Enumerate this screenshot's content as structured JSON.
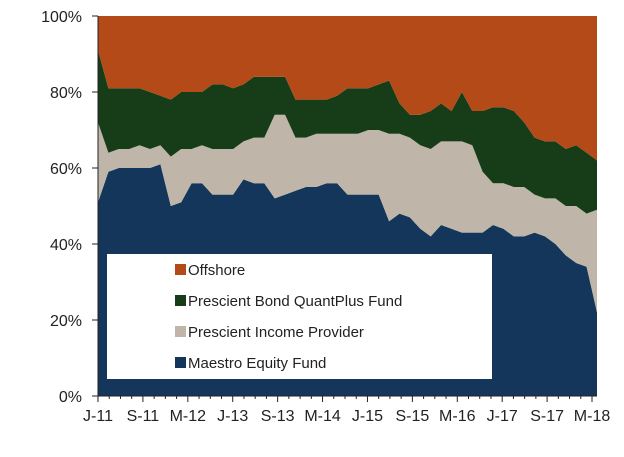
{
  "chart_data": {
    "type": "area",
    "stacked": true,
    "percent": true,
    "title": "",
    "xlabel": "",
    "ylabel": "",
    "ylim": [
      0,
      100
    ],
    "y_ticks": [
      "0%",
      "20%",
      "40%",
      "60%",
      "80%",
      "100%"
    ],
    "x_ticks": [
      "J-11",
      "S-11",
      "M-12",
      "J-13",
      "S-13",
      "M-14",
      "J-15",
      "S-15",
      "M-16",
      "J-17",
      "S-17",
      "M-18"
    ],
    "legend_position": "lower-left, inside plot",
    "grid": false,
    "series": [
      {
        "name": "Maestro Equity Fund",
        "color": "#14365a",
        "values": [
          51,
          59,
          60,
          60,
          60,
          60,
          61,
          50,
          51,
          56,
          56,
          53,
          53,
          53,
          57,
          56,
          56,
          52,
          53,
          54,
          55,
          55,
          56,
          56,
          53,
          53,
          53,
          53,
          46,
          48,
          47,
          44,
          42,
          45,
          44,
          43,
          43,
          43,
          45,
          44,
          42,
          42,
          43,
          42,
          40,
          37,
          35,
          34,
          22
        ]
      },
      {
        "name": "Prescient Income Provider",
        "color": "#bfb6a9",
        "values": [
          21,
          5,
          5,
          5,
          6,
          5,
          5,
          13,
          14,
          9,
          10,
          12,
          12,
          12,
          10,
          12,
          12,
          22,
          21,
          14,
          13,
          14,
          13,
          13,
          16,
          16,
          17,
          17,
          23,
          21,
          21,
          22,
          23,
          22,
          23,
          24,
          23,
          16,
          11,
          12,
          13,
          13,
          10,
          10,
          12,
          13,
          15,
          14,
          27
        ]
      },
      {
        "name": "Prescient Bond QuantPlus Fund",
        "color": "#173d18",
        "values": [
          19,
          17,
          16,
          16,
          15,
          15,
          13,
          15,
          15,
          15,
          14,
          17,
          17,
          16,
          15,
          16,
          16,
          10,
          10,
          10,
          10,
          9,
          9,
          10,
          12,
          12,
          11,
          12,
          14,
          8,
          6,
          8,
          10,
          10,
          8,
          13,
          9,
          16,
          20,
          20,
          20,
          17,
          15,
          15,
          15,
          15,
          16,
          16,
          13
        ]
      },
      {
        "name": "Offshore",
        "color": "#b34a18",
        "values": [
          9,
          19,
          19,
          19,
          19,
          20,
          21,
          22,
          20,
          20,
          20,
          18,
          18,
          19,
          18,
          16,
          16,
          16,
          16,
          22,
          22,
          22,
          22,
          21,
          19,
          19,
          19,
          18,
          17,
          23,
          26,
          26,
          25,
          23,
          25,
          20,
          25,
          25,
          24,
          24,
          25,
          28,
          32,
          33,
          33,
          35,
          34,
          36,
          38
        ]
      }
    ]
  },
  "legend": {
    "items": [
      {
        "label": "Offshore",
        "color": "#b34a18"
      },
      {
        "label": "Prescient Bond QuantPlus Fund",
        "color": "#173d18"
      },
      {
        "label": "Prescient Income Provider",
        "color": "#bfb6a9"
      },
      {
        "label": "Maestro Equity Fund",
        "color": "#14365a"
      }
    ]
  }
}
